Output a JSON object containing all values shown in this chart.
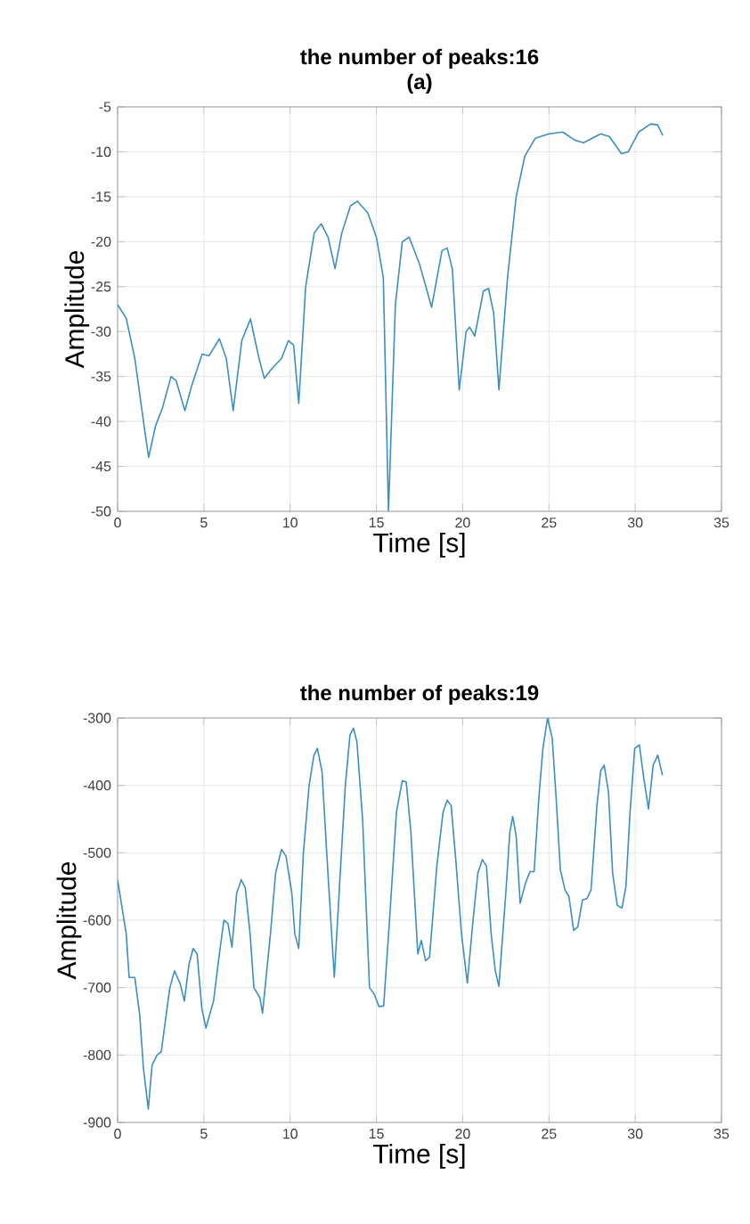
{
  "chart_data": [
    {
      "type": "line",
      "title": "the number of peaks:16",
      "subtitle": "(a)",
      "xlabel": "Time [s]",
      "ylabel": "Amplitude",
      "xlim": [
        0,
        35
      ],
      "ylim": [
        -50,
        -5
      ],
      "xticks": [
        0,
        5,
        10,
        15,
        20,
        25,
        30,
        35
      ],
      "yticks": [
        -50,
        -45,
        -40,
        -35,
        -30,
        -25,
        -20,
        -15,
        -10,
        -5
      ],
      "grid": true,
      "marker": "none",
      "line_style": "solid",
      "x": [
        0,
        0.5,
        1,
        1.5,
        1.8,
        2.2,
        2.6,
        3.1,
        3.4,
        3.9,
        4.3,
        4.9,
        5.3,
        5.9,
        6.3,
        6.7,
        7.2,
        7.7,
        8.2,
        8.5,
        9,
        9.5,
        9.9,
        10.2,
        10.5,
        10.9,
        11.4,
        11.8,
        12.2,
        12.6,
        13,
        13.5,
        13.9,
        14.5,
        15,
        15.4,
        15.7,
        16.1,
        16.5,
        16.9,
        17.5,
        18.2,
        18.8,
        19.1,
        19.4,
        19.8,
        20.2,
        20.4,
        20.7,
        21.2,
        21.5,
        21.8,
        22.1,
        22.6,
        23.1,
        23.6,
        24.2,
        25,
        25.8,
        26.5,
        27,
        28,
        28.5,
        29.2,
        29.6,
        30.2,
        30.9,
        31.3,
        31.6
      ],
      "series": [
        {
          "color": "#3d8fbf",
          "values": [
            -27,
            -28.5,
            -33,
            -40,
            -44,
            -40.5,
            -38.5,
            -35,
            -35.5,
            -38.8,
            -36,
            -32.5,
            -32.7,
            -30.8,
            -33,
            -38.8,
            -31,
            -28.6,
            -33,
            -35.2,
            -34,
            -33,
            -31,
            -31.5,
            -38,
            -25,
            -19,
            -18,
            -19.5,
            -23,
            -19,
            -16,
            -15.5,
            -16.8,
            -19.5,
            -24,
            -50,
            -27,
            -20,
            -19.5,
            -22.5,
            -27.3,
            -21,
            -20.7,
            -23,
            -36.5,
            -30,
            -29.5,
            -30.5,
            -25.5,
            -25.2,
            -28,
            -36.5,
            -24,
            -15,
            -10.5,
            -8.5,
            -8,
            -7.8,
            -8.7,
            -9,
            -8,
            -8.3,
            -10.2,
            -10,
            -7.8,
            -6.9,
            -7,
            -8.2
          ]
        }
      ]
    },
    {
      "type": "line",
      "title": "the number of peaks:19",
      "xlabel": "Time [s]",
      "ylabel": "Amplitude",
      "xlim": [
        0,
        35
      ],
      "ylim": [
        -900,
        -300
      ],
      "xticks": [
        0,
        5,
        10,
        15,
        20,
        25,
        30,
        35
      ],
      "yticks": [
        -900,
        -800,
        -700,
        -600,
        -500,
        -400,
        -300
      ],
      "grid": true,
      "marker": "none",
      "line_style": "solid",
      "x": [
        0,
        0.5,
        0.67,
        1.0,
        1.28,
        1.5,
        1.78,
        2.0,
        2.29,
        2.53,
        3.03,
        3.3,
        3.64,
        3.87,
        4.14,
        4.38,
        4.61,
        4.88,
        5.12,
        5.56,
        5.9,
        6.16,
        6.4,
        6.63,
        6.9,
        7.17,
        7.4,
        7.68,
        7.9,
        8.25,
        8.4,
        8.86,
        9.16,
        9.5,
        9.76,
        10.1,
        10.27,
        10.5,
        10.77,
        11.1,
        11.38,
        11.58,
        11.85,
        12.12,
        12.56,
        12.86,
        13.2,
        13.47,
        13.67,
        13.87,
        14.2,
        14.6,
        14.88,
        15.15,
        15.42,
        15.76,
        16.16,
        16.5,
        16.73,
        17.0,
        17.4,
        17.6,
        17.85,
        18.08,
        18.5,
        18.86,
        19.1,
        19.33,
        19.6,
        19.93,
        20.27,
        20.6,
        20.88,
        21.14,
        21.38,
        21.65,
        21.89,
        22.1,
        22.5,
        22.73,
        22.9,
        23.1,
        23.33,
        23.64,
        23.9,
        24.14,
        24.41,
        24.65,
        24.92,
        25.19,
        25.42,
        25.66,
        25.93,
        26.16,
        26.43,
        26.67,
        26.94,
        27.2,
        27.44,
        27.78,
        28.0,
        28.2,
        28.45,
        28.69,
        28.96,
        29.23,
        29.46,
        29.7,
        29.97,
        30.24,
        30.5,
        30.77,
        31.04,
        31.31,
        31.58
      ],
      "series": [
        {
          "color": "#3d8fbf",
          "values": [
            -540,
            -620,
            -685,
            -685,
            -740,
            -820,
            -880,
            -815,
            -800,
            -795,
            -700,
            -675,
            -695,
            -720,
            -665,
            -642,
            -650,
            -730,
            -760,
            -720,
            -650,
            -600,
            -605,
            -640,
            -560,
            -540,
            -552,
            -620,
            -700,
            -715,
            -738,
            -620,
            -530,
            -495,
            -505,
            -560,
            -620,
            -642,
            -500,
            -400,
            -355,
            -345,
            -380,
            -500,
            -685,
            -550,
            -400,
            -325,
            -315,
            -335,
            -450,
            -700,
            -710,
            -728,
            -727,
            -600,
            -440,
            -393,
            -395,
            -470,
            -650,
            -630,
            -660,
            -655,
            -520,
            -440,
            -422,
            -430,
            -510,
            -620,
            -693,
            -600,
            -530,
            -510,
            -520,
            -620,
            -675,
            -698,
            -560,
            -470,
            -446,
            -475,
            -575,
            -545,
            -528,
            -528,
            -420,
            -345,
            -300,
            -330,
            -420,
            -525,
            -555,
            -565,
            -615,
            -610,
            -570,
            -568,
            -555,
            -430,
            -378,
            -370,
            -410,
            -530,
            -578,
            -582,
            -550,
            -440,
            -345,
            -340,
            -390,
            -435,
            -370,
            -355,
            -385
          ]
        }
      ]
    }
  ]
}
